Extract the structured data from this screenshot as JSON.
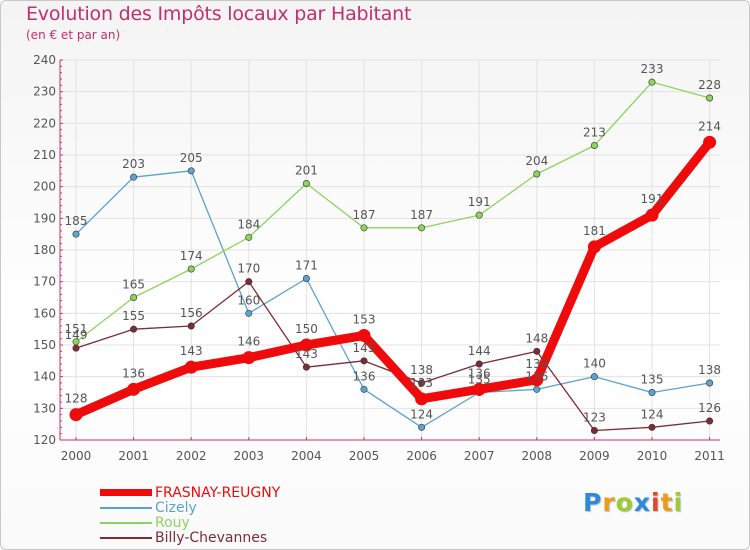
{
  "header": {
    "title": "Evolution des Impôts locaux par Habitant",
    "subtitle": "(en € et par an)"
  },
  "colors": {
    "title": "#c62e6b",
    "axis": "#c8326e",
    "text": "#555555",
    "grid": "#e2e2e2"
  },
  "chart_data": {
    "type": "line",
    "title": "Evolution des Impôts locaux par Habitant",
    "subtitle": "(en € et par an)",
    "xlabel": "",
    "ylabel": "",
    "ylim": [
      120,
      240
    ],
    "ytick_step": 10,
    "yticks": [
      "120",
      "130",
      "140",
      "150",
      "160",
      "170",
      "180",
      "190",
      "200",
      "210",
      "220",
      "230",
      "240"
    ],
    "categories": [
      "2000",
      "2001",
      "2002",
      "2003",
      "2004",
      "2005",
      "2006",
      "2007",
      "2008",
      "2009",
      "2010",
      "2011"
    ],
    "grid": true,
    "legend_position": "bottom-left",
    "series": [
      {
        "name": "Cizely",
        "color": "#5ba3d3",
        "values": [
          185,
          203,
          205,
          160,
          171,
          136,
          124,
          135,
          136,
          140,
          135,
          138
        ],
        "labels": [
          "185",
          "203",
          "205",
          "160",
          "171",
          "136",
          "124",
          "135",
          "136",
          "140",
          "135",
          "138"
        ]
      },
      {
        "name": "Rouy",
        "color": "#8ed45c",
        "values": [
          151,
          165,
          174,
          184,
          201,
          187,
          187,
          191,
          204,
          213,
          233,
          228
        ],
        "labels": [
          "151",
          "165",
          "174",
          "184",
          "201",
          "187",
          "187",
          "191",
          "204",
          "213",
          "233",
          "228"
        ]
      },
      {
        "name": "Billy-Chevannes",
        "color": "#7b2c35",
        "values": [
          149,
          155,
          156,
          170,
          143,
          145,
          138,
          144,
          148,
          123,
          124,
          126
        ],
        "labels": [
          "149",
          "155",
          "156",
          "170",
          "143",
          "145",
          "138",
          "144",
          "148",
          "123",
          "124",
          "126"
        ]
      },
      {
        "name": "FRASNAY-REUGNY",
        "color": "#ef0b0b",
        "values": [
          128,
          136,
          143,
          146,
          150,
          153,
          133,
          136,
          139,
          181,
          191,
          214
        ],
        "labels": [
          "128",
          "136",
          "143",
          "146",
          "150",
          "153",
          "133",
          "136",
          "139",
          "181",
          "191",
          "214"
        ]
      }
    ]
  },
  "legend": [
    {
      "label": "FRASNAY-REUGNY",
      "color": "#ef0b0b"
    },
    {
      "label": "Cizely",
      "color": "#5ba3d3"
    },
    {
      "label": "Rouy",
      "color": "#8ed45c"
    },
    {
      "label": "Billy-Chevannes",
      "color": "#7b2c35"
    }
  ],
  "logo": {
    "letters": [
      "P",
      "r",
      "o",
      "x",
      "i",
      "t",
      "i"
    ],
    "colors": [
      "#2c8ad8",
      "#f09a1a",
      "#9acd32",
      "#2c8ad8",
      "#e8442b",
      "#f09a1a",
      "#9acd32"
    ]
  }
}
